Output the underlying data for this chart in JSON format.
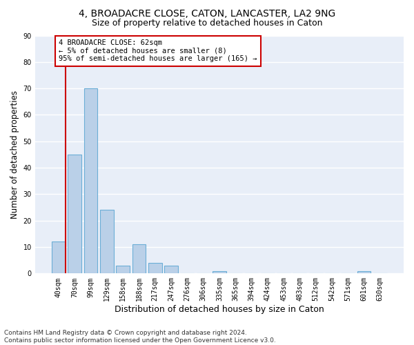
{
  "title1": "4, BROADACRE CLOSE, CATON, LANCASTER, LA2 9NG",
  "title2": "Size of property relative to detached houses in Caton",
  "xlabel": "Distribution of detached houses by size in Caton",
  "ylabel": "Number of detached properties",
  "categories": [
    "40sqm",
    "70sqm",
    "99sqm",
    "129sqm",
    "158sqm",
    "188sqm",
    "217sqm",
    "247sqm",
    "276sqm",
    "306sqm",
    "335sqm",
    "365sqm",
    "394sqm",
    "424sqm",
    "453sqm",
    "483sqm",
    "512sqm",
    "542sqm",
    "571sqm",
    "601sqm",
    "630sqm"
  ],
  "values": [
    12,
    45,
    70,
    24,
    3,
    11,
    4,
    3,
    0,
    0,
    1,
    0,
    0,
    0,
    0,
    0,
    0,
    0,
    0,
    1,
    0
  ],
  "bar_color": "#bad0e8",
  "bar_edge_color": "#6baed6",
  "background_color": "#e8eef8",
  "grid_color": "#ffffff",
  "property_line_color": "#cc0000",
  "annotation_text": "4 BROADACRE CLOSE: 62sqm\n← 5% of detached houses are smaller (8)\n95% of semi-detached houses are larger (165) →",
  "annotation_box_color": "#cc0000",
  "ylim": [
    0,
    90
  ],
  "yticks": [
    0,
    10,
    20,
    30,
    40,
    50,
    60,
    70,
    80,
    90
  ],
  "footer": "Contains HM Land Registry data © Crown copyright and database right 2024.\nContains public sector information licensed under the Open Government Licence v3.0.",
  "title1_fontsize": 10,
  "title2_fontsize": 9,
  "xlabel_fontsize": 9,
  "ylabel_fontsize": 8.5,
  "tick_fontsize": 7,
  "annotation_fontsize": 7.5,
  "footer_fontsize": 6.5
}
